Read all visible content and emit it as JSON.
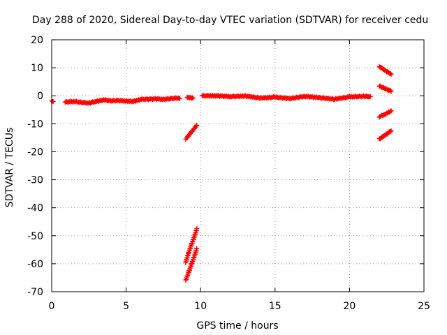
{
  "chart_data": {
    "type": "scatter",
    "title": "Day 288 of 2020, Sidereal Day-to-day VTEC variation (SDTVAR) for receiver cedu",
    "xlabel": "GPS time / hours",
    "ylabel": "SDTVAR / TECUs",
    "xlim": [
      0,
      25
    ],
    "ylim": [
      -70,
      20
    ],
    "xticks": [
      0,
      5,
      10,
      15,
      20,
      25
    ],
    "yticks": [
      -70,
      -60,
      -50,
      -40,
      -30,
      -20,
      -10,
      0,
      10,
      20
    ],
    "grid": true,
    "marker": "+",
    "series_color": "#ff0000",
    "segments": [
      {
        "x": [
          0.0,
          0.1
        ],
        "y": [
          -2.0,
          -2.0
        ]
      },
      {
        "x": [
          0.9,
          1.5,
          2.0,
          2.5,
          3.0,
          3.5,
          4.0,
          4.5,
          5.0,
          5.5,
          6.0,
          6.5,
          7.0,
          7.5,
          8.0,
          8.5,
          8.6
        ],
        "y": [
          -2.3,
          -2.0,
          -2.4,
          -2.6,
          -2.0,
          -1.5,
          -1.8,
          -1.7,
          -1.9,
          -2.0,
          -1.3,
          -1.2,
          -1.1,
          -1.3,
          -1.0,
          -0.8,
          -0.9
        ]
      },
      {
        "x": [
          9.1,
          9.3,
          9.5
        ],
        "y": [
          -0.5,
          -0.7,
          -0.8
        ]
      },
      {
        "x": [
          9.0,
          9.3,
          9.6,
          9.75
        ],
        "y": [
          -15.5,
          -13.5,
          -11.5,
          -10.5
        ]
      },
      {
        "x": [
          9.0,
          9.2,
          9.4,
          9.6,
          9.75
        ],
        "y": [
          -59.5,
          -56,
          -53,
          -50,
          -47.5
        ]
      },
      {
        "x": [
          9.0,
          9.2,
          9.4,
          9.6,
          9.75
        ],
        "y": [
          -66,
          -63,
          -60,
          -57,
          -54.5
        ]
      },
      {
        "x": [
          10.1,
          11.0,
          12.0,
          13.0,
          14.0,
          15.0,
          16.0,
          17.0,
          18.0,
          19.0,
          20.0,
          21.0,
          21.4
        ],
        "y": [
          0.0,
          0.0,
          -0.3,
          -0.1,
          -0.8,
          -0.5,
          -1.0,
          -0.2,
          -0.7,
          -1.2,
          -0.4,
          -0.2,
          -0.3
        ]
      },
      {
        "x": [
          22.0,
          22.4,
          22.8
        ],
        "y": [
          10.5,
          9.0,
          7.7
        ]
      },
      {
        "x": [
          22.0,
          22.4,
          22.8
        ],
        "y": [
          3.5,
          2.5,
          1.7
        ]
      },
      {
        "x": [
          22.0,
          22.4,
          22.8
        ],
        "y": [
          -7.5,
          -6.5,
          -5.5
        ]
      },
      {
        "x": [
          22.0,
          22.4,
          22.8
        ],
        "y": [
          -15.5,
          -14.0,
          -12.5
        ]
      }
    ]
  }
}
